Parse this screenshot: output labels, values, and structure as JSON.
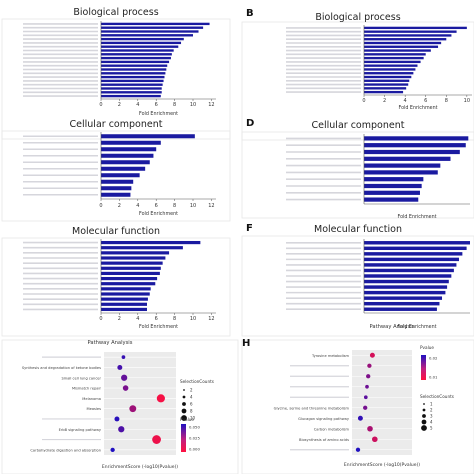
{
  "panels": [
    {
      "letter": "",
      "title": "Biological process",
      "xlabel": "Fold Enrichment",
      "xticks": [
        "0",
        "2",
        "4",
        "6",
        "8",
        "10",
        "12"
      ]
    },
    {
      "letter": "B",
      "title": "Biological process",
      "xlabel": "Fold Enrichment",
      "xticks": [
        "0",
        "2",
        "4",
        "6",
        "8",
        "10"
      ]
    },
    {
      "letter": "",
      "title": "Cellular component",
      "xlabel": "Fold Enrichment",
      "xticks": [
        "0",
        "2",
        "4",
        "6",
        "8",
        "10",
        "12"
      ]
    },
    {
      "letter": "D",
      "title": "Cellular component",
      "xlabel": "Fold Enrichment",
      "xticks": []
    },
    {
      "letter": "",
      "title": "Molecular function",
      "xlabel": "Fold Enrichment",
      "xticks": [
        "0",
        "2",
        "4",
        "6",
        "8",
        "10",
        "12"
      ]
    },
    {
      "letter": "F",
      "title": "Molecular function",
      "xlabel": "Fold Enrichment",
      "xticks": []
    },
    {
      "letter": "",
      "title": "Pathway Analysis",
      "xlabel": "EnrichmentScore (-log10(Pvalue))",
      "xticks": []
    },
    {
      "letter": "H",
      "title": "Pathway Analysis",
      "xlabel": "EnrichmentScore (-log10(Pvalue))",
      "xticks": []
    }
  ],
  "legends": {
    "g": {
      "counts_title": "SelectionCounts",
      "counts": [
        "2",
        "4",
        "6",
        "8",
        "10"
      ],
      "pvalue_title": "Pvalue",
      "pvalue_ticks": [
        "0.050",
        "0.025",
        "0.000"
      ]
    },
    "h": {
      "counts_title": "SelectionCounts",
      "counts": [
        "1",
        "2",
        "3",
        "4",
        "5"
      ],
      "pvalue_title": "Pvalue",
      "pvalue_ticks": [
        "0.02",
        "0.01"
      ]
    }
  },
  "chart_data": [
    {
      "type": "bar",
      "title": "Biological process",
      "xlabel": "Fold Enrichment",
      "xlim": [
        0,
        12.5
      ],
      "values": [
        11.8,
        11.1,
        10.6,
        10.0,
        9.0,
        8.7,
        8.4,
        7.9,
        7.7,
        7.6,
        7.4,
        7.2,
        7.1,
        7.0,
        6.9,
        6.8,
        6.7,
        6.6,
        6.6,
        6.5
      ]
    },
    {
      "type": "bar",
      "title": "Biological process",
      "xlabel": "Fold Enrichment",
      "xlim": [
        0,
        10.5
      ],
      "values": [
        10.0,
        9.0,
        8.5,
        8.0,
        7.5,
        7.2,
        6.5,
        6.0,
        5.8,
        5.5,
        5.2,
        5.0,
        4.8,
        4.6,
        4.4,
        4.3,
        4.1,
        3.8
      ]
    },
    {
      "type": "bar",
      "title": "Cellular component",
      "xlabel": "Fold Enrichment",
      "xlim": [
        0,
        12.5
      ],
      "values": [
        10.2,
        6.5,
        6.0,
        5.7,
        5.3,
        4.8,
        4.2,
        3.5,
        3.3,
        3.2
      ]
    },
    {
      "type": "bar",
      "title": "Cellular component",
      "xlabel": "Fold Enrichment",
      "xlim": [
        0,
        12.5
      ],
      "values": [
        12.3,
        12.0,
        11.3,
        10.2,
        9.0,
        8.7,
        7.0,
        6.8,
        6.6,
        6.4
      ]
    },
    {
      "type": "bar",
      "title": "Molecular function",
      "xlabel": "Fold Enrichment",
      "xlim": [
        0,
        12.5
      ],
      "values": [
        10.8,
        8.9,
        7.4,
        7.0,
        6.7,
        6.5,
        6.4,
        6.1,
        5.9,
        5.4,
        5.3,
        5.1,
        5.0,
        5.0
      ]
    },
    {
      "type": "bar",
      "title": "Molecular function",
      "xlabel": "Fold Enrichment",
      "xlim": [
        0,
        12.5
      ],
      "values": [
        12.5,
        12.1,
        11.6,
        11.2,
        10.9,
        10.6,
        10.3,
        10.0,
        9.8,
        9.6,
        9.2,
        8.9,
        8.6
      ]
    },
    {
      "type": "scatter",
      "title": "Pathway Analysis",
      "xlabel": "EnrichmentScore (-log10(Pvalue))",
      "categories": [
        "",
        "Synthesis and degradation of ketone bodies",
        "Small cell lung cancer",
        "Mismatch repair",
        "Melanoma",
        "Measles",
        "",
        "ErbB signaling pathway",
        "",
        "Carbohydrate digestion and absorption"
      ],
      "x": [
        0.27,
        0.22,
        0.28,
        0.3,
        0.79,
        0.4,
        0.18,
        0.24,
        0.73,
        0.12
      ],
      "sizes": [
        2,
        4,
        6,
        5,
        9,
        7,
        4,
        6,
        10,
        3
      ],
      "pvalues": [
        0.045,
        0.042,
        0.035,
        0.03,
        0.002,
        0.022,
        0.048,
        0.04,
        0.004,
        0.05
      ]
    },
    {
      "type": "scatter",
      "title": "Pathway Analysis",
      "xlabel": "EnrichmentScore (-log10(Pvalue))",
      "categories": [
        "Tyrosine metabolism",
        "",
        "",
        "",
        "",
        "Glycine, serine and threonine metabolism",
        "Glucagon signaling pathway",
        "Carbon metabolism",
        "Biosynthesis of amino acids",
        ""
      ],
      "x": [
        0.34,
        0.29,
        0.27,
        0.25,
        0.23,
        0.22,
        0.14,
        0.3,
        0.38,
        0.1
      ],
      "sizes": [
        4,
        3,
        3,
        2,
        2,
        3,
        4,
        5,
        5,
        3
      ],
      "pvalues": [
        0.005,
        0.012,
        0.015,
        0.017,
        0.019,
        0.016,
        0.024,
        0.01,
        0.006,
        0.026
      ]
    }
  ],
  "colors": {
    "bar": "#1a1aa0",
    "pval_low": "#ff1040",
    "pval_high": "#2010c0"
  }
}
